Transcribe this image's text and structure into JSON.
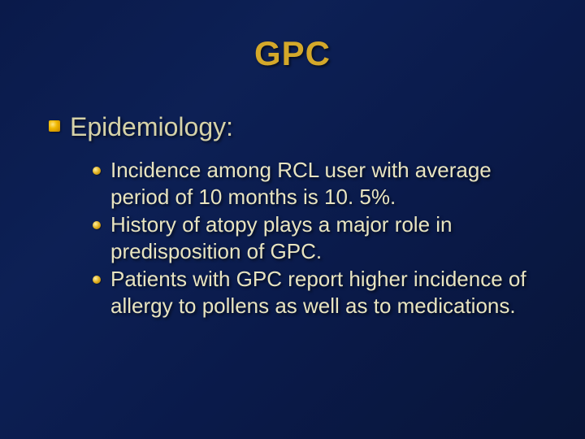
{
  "title": "GPC",
  "title_color": "#d4a82a",
  "title_fontsize": 42,
  "section_heading": "Epidemiology:",
  "heading_color": "#d6d2a8",
  "heading_fontsize": 32,
  "body_color": "#e8e4c0",
  "body_fontsize": 26,
  "bullet_dot_color": "#e0b020",
  "bullets": [
    "Incidence among RCL  user with average period of 10 months is 10. 5%.",
    "History of atopy plays a major role in predisposition of GPC.",
    "Patients with GPC report higher incidence of allergy to pollens as well as to medications."
  ]
}
